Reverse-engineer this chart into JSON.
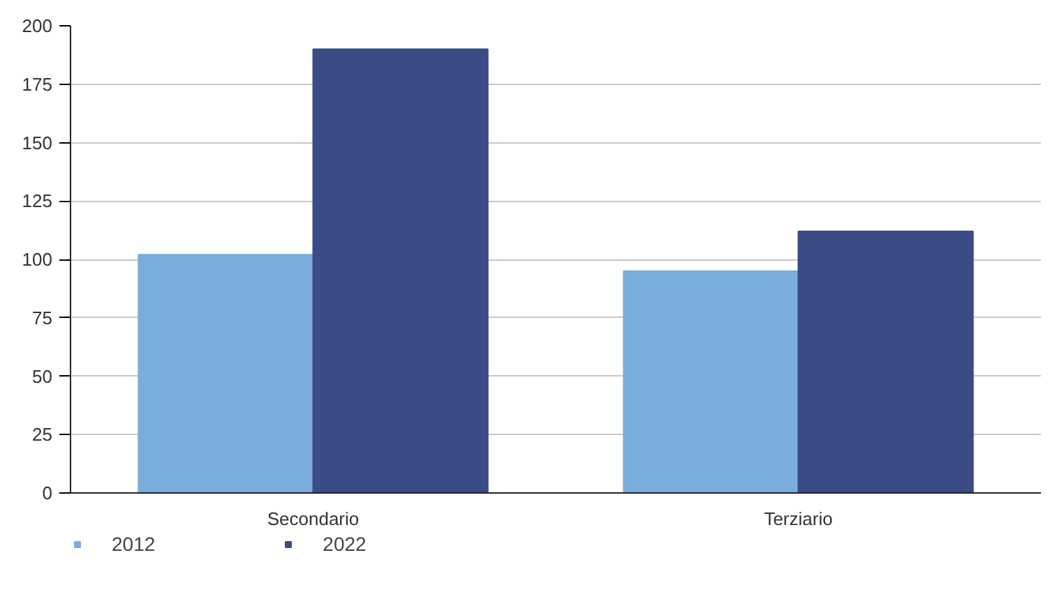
{
  "chart_data": {
    "type": "bar",
    "categories": [
      "Secondario",
      "Terziario"
    ],
    "series": [
      {
        "name": "2012",
        "color": "#7aaddc",
        "values": [
          102,
          95
        ]
      },
      {
        "name": "2022",
        "color": "#3a4b86",
        "values": [
          190,
          112
        ]
      }
    ],
    "ylim": [
      0,
      200
    ],
    "yticks": [
      0,
      25,
      50,
      75,
      100,
      125,
      150,
      175,
      200
    ],
    "grid": "y",
    "legend": "bottom left"
  }
}
